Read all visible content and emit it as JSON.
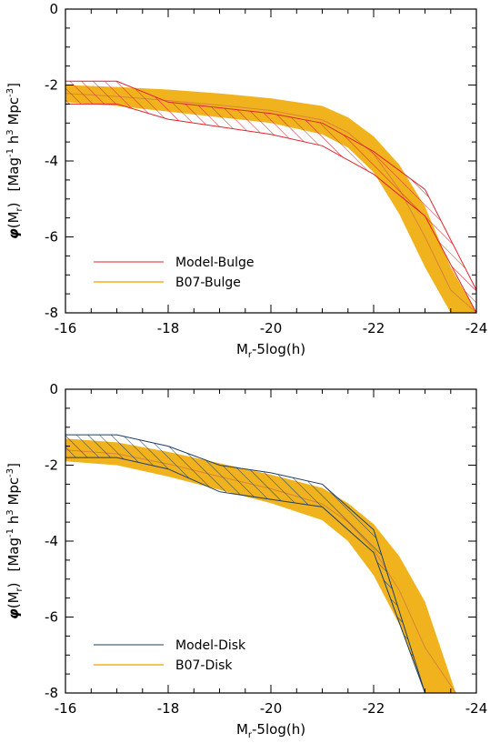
{
  "colors": {
    "band": "#f0b31e",
    "band_line": "#d8853a",
    "bulge_model": "#e0242c",
    "disk_model": "#1d3f66",
    "axis": "#000000"
  },
  "chart_data": [
    {
      "type": "area",
      "xlabel": "M",
      "xlabel_sub": "r",
      "xlabel_rest": "-5log(h)",
      "ylabel_phi": "φ",
      "ylabel_arg_open": "(M",
      "ylabel_arg_sub": "r",
      "ylabel_arg_close": ")",
      "ylabel_units": "[Mag",
      "ylabel_units_sup1": "-1",
      "ylabel_units_h": " h",
      "ylabel_units_sup2": "3",
      "ylabel_units_mpc": " Mpc",
      "ylabel_units_sup3": "-3",
      "ylabel_units_close": "]",
      "xlim": [
        -16,
        -24
      ],
      "ylim": [
        -8,
        0
      ],
      "xticks": [
        -16,
        -18,
        -20,
        -22,
        -24
      ],
      "yticks": [
        -8,
        -6,
        -4,
        -2,
        0
      ],
      "legend_position": "bottom-left",
      "legend": [
        "Model-Bulge",
        "B07-Bulge"
      ],
      "series": [
        {
          "name": "Model-Bulge",
          "kind": "hatched-band",
          "x": [
            -16,
            -17,
            -18,
            -19,
            -20,
            -21,
            -22,
            -23,
            -24
          ],
          "upper": [
            -1.9,
            -1.9,
            -2.45,
            -2.6,
            -2.75,
            -3.0,
            -3.75,
            -4.75,
            -7.4
          ],
          "lower": [
            -2.5,
            -2.5,
            -2.9,
            -3.1,
            -3.3,
            -3.6,
            -4.35,
            -5.45,
            -8.0
          ]
        },
        {
          "name": "B07-Bulge",
          "kind": "filled-band",
          "x": [
            -16,
            -17,
            -18,
            -19,
            -20,
            -21,
            -21.5,
            -22,
            -22.5,
            -23,
            -23.5,
            -24
          ],
          "upper": [
            -2.0,
            -2.05,
            -2.12,
            -2.22,
            -2.35,
            -2.55,
            -2.85,
            -3.35,
            -4.1,
            -5.2,
            -6.8,
            -8.0
          ],
          "lower": [
            -2.45,
            -2.55,
            -2.7,
            -2.85,
            -3.0,
            -3.3,
            -3.65,
            -4.3,
            -5.4,
            -6.8,
            -8.0,
            -8.0
          ],
          "center": [
            -2.22,
            -2.3,
            -2.41,
            -2.53,
            -2.67,
            -2.92,
            -3.25,
            -3.82,
            -4.75,
            -6.0,
            -7.4,
            -8.0
          ]
        }
      ]
    },
    {
      "type": "area",
      "xlabel": "M",
      "xlabel_sub": "r",
      "xlabel_rest": "-5log(h)",
      "ylabel_phi": "φ",
      "ylabel_arg_open": "(M",
      "ylabel_arg_sub": "r",
      "ylabel_arg_close": ")",
      "ylabel_units": "[Mag",
      "ylabel_units_sup1": "-1",
      "ylabel_units_h": " h",
      "ylabel_units_sup2": "3",
      "ylabel_units_mpc": " Mpc",
      "ylabel_units_sup3": "-3",
      "ylabel_units_close": "]",
      "xlim": [
        -16,
        -24
      ],
      "ylim": [
        -8,
        0
      ],
      "xticks": [
        -16,
        -18,
        -20,
        -22,
        -24
      ],
      "yticks": [
        -8,
        -6,
        -4,
        -2,
        0
      ],
      "legend_position": "bottom-left",
      "legend": [
        "Model-Disk",
        "B07-Disk"
      ],
      "series": [
        {
          "name": "Model-Disk",
          "kind": "hatched-band",
          "x": [
            -16,
            -17,
            -18,
            -19,
            -20,
            -21,
            -22,
            -23,
            -24
          ],
          "upper": [
            -1.2,
            -1.2,
            -1.5,
            -2.0,
            -2.2,
            -2.5,
            -3.7,
            -8.0,
            -8.0
          ],
          "lower": [
            -1.8,
            -1.8,
            -2.1,
            -2.7,
            -2.9,
            -3.1,
            -4.3,
            -8.0,
            -8.0
          ]
        },
        {
          "name": "B07-Disk",
          "kind": "filled-band",
          "x": [
            -16,
            -17,
            -18,
            -19,
            -20,
            -21,
            -21.5,
            -22,
            -22.5,
            -23,
            -23.6
          ],
          "upper": [
            -1.3,
            -1.4,
            -1.65,
            -1.95,
            -2.25,
            -2.6,
            -3.0,
            -3.55,
            -4.4,
            -5.6,
            -8.0
          ],
          "lower": [
            -1.9,
            -2.0,
            -2.3,
            -2.65,
            -3.0,
            -3.45,
            -4.0,
            -4.9,
            -6.2,
            -8.0,
            -8.0
          ],
          "center": [
            -1.6,
            -1.7,
            -1.97,
            -2.3,
            -2.62,
            -3.02,
            -3.5,
            -4.22,
            -5.3,
            -6.8,
            -8.0
          ]
        }
      ]
    }
  ]
}
